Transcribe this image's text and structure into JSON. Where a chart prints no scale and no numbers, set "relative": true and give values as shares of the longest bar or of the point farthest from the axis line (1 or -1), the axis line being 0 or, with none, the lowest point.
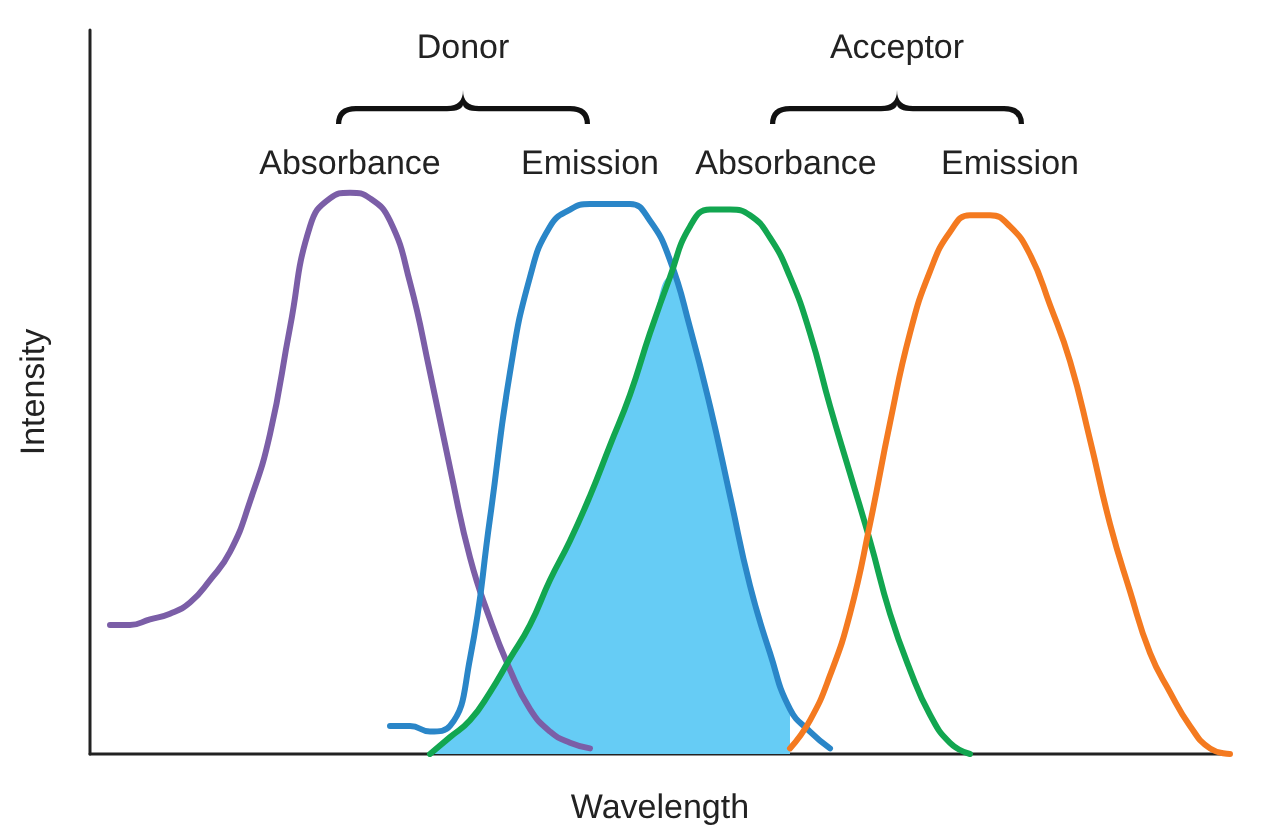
{
  "chart_data": {
    "type": "line",
    "relative": true,
    "xlabel": "Wavelength",
    "ylabel": "Intensity",
    "annotations": [
      "Donor",
      "Acceptor"
    ],
    "marker": "none",
    "legend": false,
    "grid": false,
    "categories": [
      null,
      null,
      null,
      null,
      null,
      null,
      null,
      null,
      null,
      null,
      null,
      null,
      null,
      null,
      null,
      null,
      null,
      null,
      null,
      null,
      null,
      null,
      null,
      null,
      null,
      null,
      null,
      null,
      null,
      null,
      null,
      null,
      null,
      null,
      null,
      null,
      null,
      null,
      null,
      null,
      null,
      null,
      null,
      null,
      null,
      null,
      null,
      null,
      null,
      null,
      null,
      null,
      null,
      null,
      null,
      null,
      null,
      null
    ],
    "series": [
      {
        "type": "area",
        "color": "#66ccf5",
        "values": [
          null,
          null,
          null,
          null,
          null,
          null,
          null,
          null,
          null,
          null,
          null,
          null,
          null,
          null,
          null,
          null,
          null,
          0,
          0.03,
          0.06,
          0.11,
          0.17,
          0.23,
          0.31,
          0.38,
          0.46,
          0.55,
          0.64,
          0.75,
          0.85,
          0.76,
          0.62,
          0.46,
          0.3,
          0.18,
          0.08,
          null,
          null,
          null,
          null,
          null,
          null,
          null,
          null,
          null,
          null,
          null,
          null,
          null,
          null,
          null,
          null,
          null,
          null,
          null,
          null,
          null,
          null
        ]
      },
      {
        "name": "Absorbance",
        "color": "#7b5ea7",
        "values": [
          null,
          0.23,
          0.23,
          0.24,
          0.25,
          0.27,
          0.31,
          0.36,
          0.45,
          0.57,
          0.76,
          0.94,
          0.99,
          1,
          0.99,
          0.95,
          0.84,
          0.68,
          0.51,
          0.35,
          0.24,
          0.15,
          0.08,
          0.04,
          0.02,
          0.01,
          null,
          null,
          null,
          null,
          null,
          null,
          null,
          null,
          null,
          null,
          null,
          null,
          null,
          null,
          null,
          null,
          null,
          null,
          null,
          null,
          null,
          null,
          null,
          null,
          null,
          null,
          null,
          null,
          null,
          null,
          null,
          null
        ]
      },
      {
        "name": "Emission",
        "color": "#2a86c8",
        "values": [
          null,
          null,
          null,
          null,
          null,
          null,
          null,
          null,
          null,
          null,
          null,
          null,
          null,
          null,
          null,
          0.05,
          0.05,
          0.04,
          0.05,
          0.17,
          0.42,
          0.68,
          0.85,
          0.94,
          0.97,
          0.98,
          0.98,
          0.98,
          0.95,
          0.88,
          0.76,
          0.62,
          0.46,
          0.3,
          0.18,
          0.08,
          0.04,
          0.01,
          null,
          null,
          null,
          null,
          null,
          null,
          null,
          null,
          null,
          null,
          null,
          null,
          null,
          null,
          null,
          null,
          null,
          null,
          null,
          null
        ]
      },
      {
        "name": "Absorbance",
        "color": "#12a650",
        "values": [
          null,
          null,
          null,
          null,
          null,
          null,
          null,
          null,
          null,
          null,
          null,
          null,
          null,
          null,
          null,
          null,
          null,
          0,
          0.03,
          0.06,
          0.11,
          0.17,
          0.23,
          0.31,
          0.38,
          0.46,
          0.55,
          0.64,
          0.75,
          0.85,
          0.94,
          0.97,
          0.97,
          0.96,
          0.92,
          0.85,
          0.75,
          0.62,
          0.5,
          0.38,
          0.25,
          0.15,
          0.07,
          0.02,
          0,
          null,
          null,
          null,
          null,
          null,
          null,
          null,
          null,
          null,
          null,
          null,
          null,
          null
        ]
      },
      {
        "name": "Emission",
        "color": "#f47a20",
        "values": [
          null,
          null,
          null,
          null,
          null,
          null,
          null,
          null,
          null,
          null,
          null,
          null,
          null,
          null,
          null,
          null,
          null,
          null,
          null,
          null,
          null,
          null,
          null,
          null,
          null,
          null,
          null,
          null,
          null,
          null,
          null,
          null,
          null,
          null,
          null,
          0.01,
          0.06,
          0.14,
          0.25,
          0.41,
          0.59,
          0.75,
          0.86,
          0.93,
          0.96,
          0.96,
          0.94,
          0.89,
          0.8,
          0.7,
          0.56,
          0.41,
          0.29,
          0.18,
          0.11,
          0.05,
          0.01,
          0
        ]
      }
    ]
  }
}
